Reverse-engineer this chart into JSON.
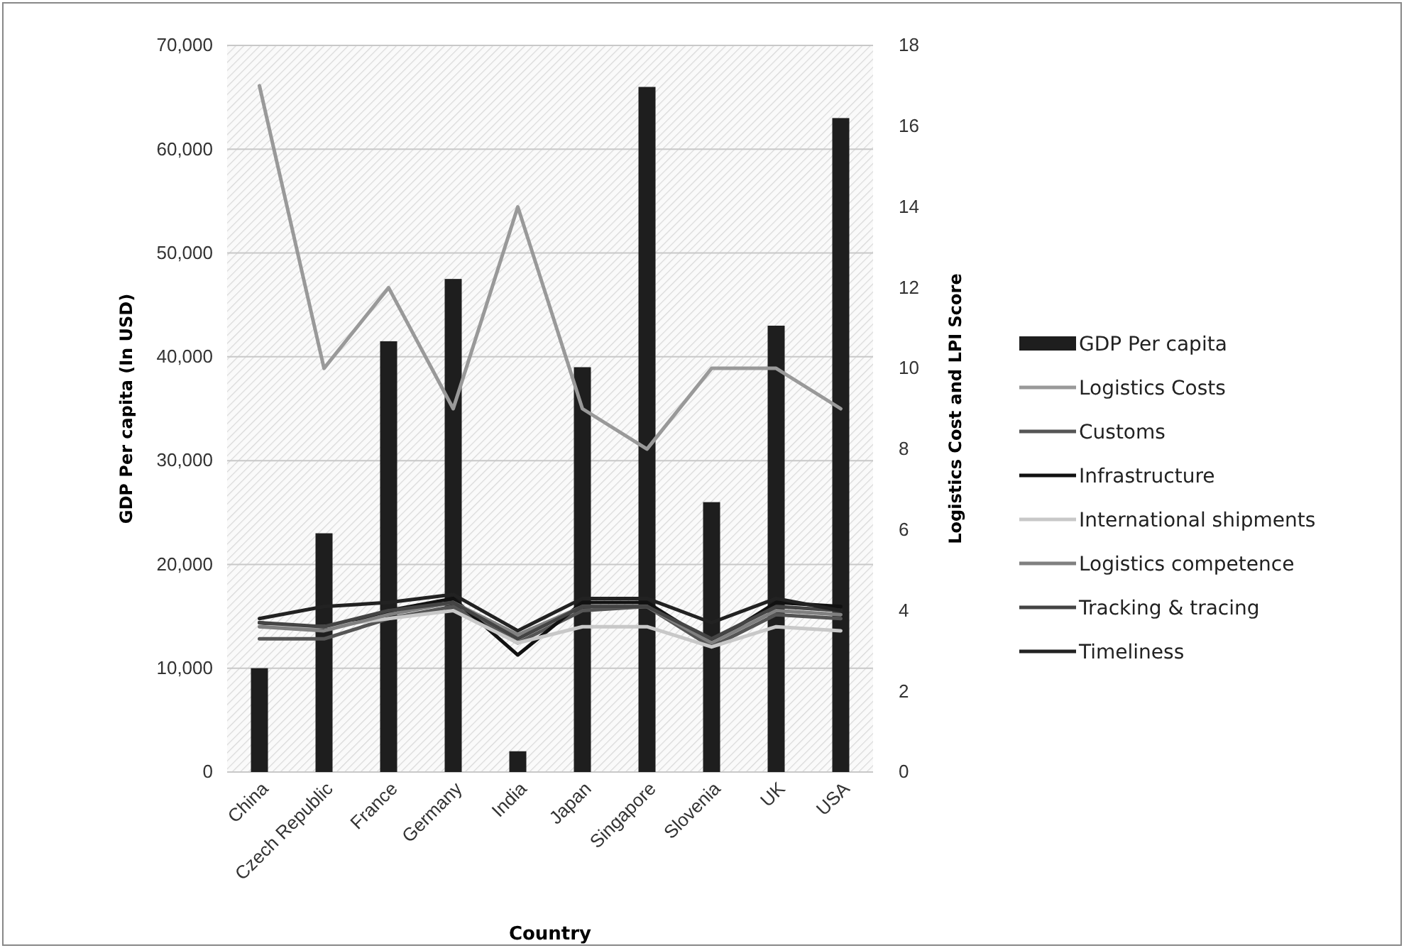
{
  "chart_data": {
    "type": "bar",
    "xlabel": "Country",
    "ylabel": "GDP Per capita (In USD)",
    "y2label": "Logistics Cost and LPI Score",
    "categories": [
      "China",
      "Czech Republic",
      "France",
      "Germany",
      "India",
      "Japan",
      "Singapore",
      "Slovenia",
      "UK",
      "USA"
    ],
    "series": [
      {
        "name": "GDP Per capita",
        "color": "#1e1e1e",
        "values": [
          10000,
          23000,
          41500,
          47500,
          2000,
          39000,
          66000,
          26000,
          43000,
          63000
        ]
      },
      {
        "name": "Logistics Costs",
        "type": "line",
        "axis": "y2",
        "color": "#999999",
        "values": [
          17,
          10,
          12,
          9,
          14,
          9,
          8,
          10,
          10,
          9
        ]
      },
      {
        "name": "Customs",
        "type": "line",
        "axis": "y2",
        "color": "#555555",
        "values": [
          3.3,
          3.3,
          3.8,
          4.1,
          3.2,
          4.0,
          4.1,
          3.1,
          3.9,
          3.8
        ]
      },
      {
        "name": "Infrastructure",
        "type": "line",
        "axis": "y2",
        "color": "#111111",
        "values": [
          3.7,
          3.5,
          4.0,
          4.3,
          2.9,
          4.2,
          4.2,
          3.2,
          4.2,
          4.1
        ]
      },
      {
        "name": "International shipments",
        "type": "line",
        "axis": "y2",
        "color": "#c8c8c8",
        "values": [
          3.6,
          3.6,
          3.8,
          4.0,
          3.2,
          3.6,
          3.6,
          3.1,
          3.6,
          3.5
        ]
      },
      {
        "name": "Logistics competence",
        "type": "line",
        "axis": "y2",
        "color": "#808080",
        "values": [
          3.6,
          3.5,
          3.9,
          4.2,
          3.4,
          4.1,
          4.1,
          3.2,
          4.0,
          3.9
        ]
      },
      {
        "name": "Tracking & tracing",
        "type": "line",
        "axis": "y2",
        "color": "#444444",
        "values": [
          3.7,
          3.6,
          4.0,
          4.2,
          3.3,
          4.1,
          4.1,
          3.3,
          4.1,
          4.0
        ]
      },
      {
        "name": "Timeliness",
        "type": "line",
        "axis": "y2",
        "color": "#222222",
        "values": [
          3.8,
          4.1,
          4.2,
          4.4,
          3.5,
          4.3,
          4.3,
          3.7,
          4.3,
          4.0
        ]
      }
    ],
    "ylim": [
      0,
      70000
    ],
    "yticks": [
      {
        "value": 0,
        "label": "0"
      },
      {
        "value": 10000,
        "label": "10,000"
      },
      {
        "value": 20000,
        "label": "20,000"
      },
      {
        "value": 30000,
        "label": "30,000"
      },
      {
        "value": 40000,
        "label": "40,000"
      },
      {
        "value": 50000,
        "label": "50,000"
      },
      {
        "value": 60000,
        "label": "60,000"
      },
      {
        "value": 70000,
        "label": "70,000"
      }
    ],
    "y2lim": [
      0,
      18
    ],
    "y2ticks": [
      0,
      2,
      4,
      6,
      8,
      10,
      12,
      14,
      16,
      18
    ],
    "grid": "y",
    "legend": "right"
  }
}
